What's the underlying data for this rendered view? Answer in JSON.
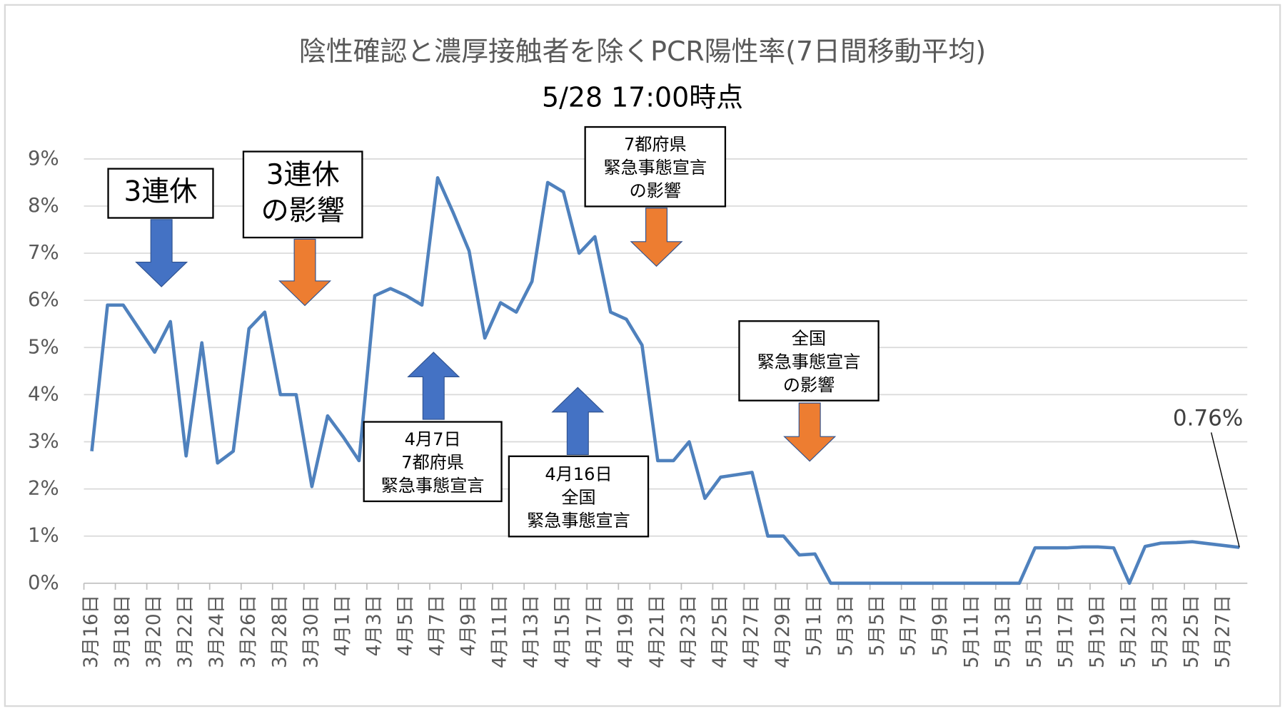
{
  "chart_data": {
    "type": "line",
    "title": "陰性確認と濃厚接触者を除くPCR陽性率(7日間移動平均)",
    "subtitle": "5/28 17:00時点",
    "categories": [
      "3月16日",
      null,
      "3月18日",
      null,
      "3月20日",
      null,
      "3月22日",
      null,
      "3月24日",
      null,
      "3月26日",
      null,
      "3月28日",
      null,
      "3月30日",
      null,
      "4月1日",
      null,
      "4月3日",
      null,
      "4月5日",
      null,
      "4月7日",
      null,
      "4月9日",
      null,
      "4月11日",
      null,
      "4月13日",
      null,
      "4月15日",
      null,
      "4月17日",
      null,
      "4月19日",
      null,
      "4月21日",
      null,
      "4月23日",
      null,
      "4月25日",
      null,
      "4月27日",
      null,
      "4月29日",
      null,
      "5月1日",
      null,
      "5月3日",
      null,
      "5月5日",
      null,
      "5月7日",
      null,
      "5月9日",
      null,
      "5月11日",
      null,
      "5月13日",
      null,
      "5月15日",
      null,
      "5月17日",
      null,
      "5月19日",
      null,
      "5月21日",
      null,
      "5月23日",
      null,
      "5月25日",
      null,
      "5月27日",
      null
    ],
    "values": [
      2.8,
      5.9,
      5.9,
      5.4,
      4.9,
      5.55,
      2.7,
      5.1,
      2.55,
      2.8,
      5.4,
      5.75,
      4.0,
      4.0,
      2.05,
      3.55,
      3.1,
      2.6,
      6.1,
      6.25,
      6.1,
      5.9,
      8.6,
      7.85,
      7.05,
      5.2,
      5.95,
      5.75,
      6.4,
      8.5,
      8.3,
      7.0,
      7.35,
      5.75,
      5.6,
      5.05,
      2.6,
      2.6,
      3.0,
      1.8,
      2.25,
      2.3,
      2.35,
      1.0,
      1.0,
      0.6,
      0.62,
      0,
      0,
      0,
      0,
      0,
      0,
      0,
      0,
      0,
      0,
      0,
      0,
      0,
      0.75,
      0.75,
      0.75,
      0.77,
      0.77,
      0.75,
      0,
      0.78,
      0.85,
      0.86,
      0.88,
      0.84,
      0.8,
      0.76
    ],
    "color": "#4f81bd",
    "ylim": [
      0,
      9
    ],
    "yticks": [
      {
        "value": 0,
        "label": "0%"
      },
      {
        "value": 1,
        "label": "1%"
      },
      {
        "value": 2,
        "label": "2%"
      },
      {
        "value": 3,
        "label": "3%"
      },
      {
        "value": 4,
        "label": "4%"
      },
      {
        "value": 5,
        "label": "5%"
      },
      {
        "value": 6,
        "label": "6%"
      },
      {
        "value": 7,
        "label": "7%"
      },
      {
        "value": 8,
        "label": "8%"
      },
      {
        "value": 9,
        "label": "9%"
      }
    ],
    "grid": true,
    "annotations": [
      {
        "lines": [
          "3連休"
        ]
      },
      {
        "lines": [
          "3連休",
          "の影響"
        ]
      },
      {
        "lines": [
          "7都府県",
          "緊急事態宣言",
          "の影響"
        ]
      },
      {
        "lines": [
          "4月7日",
          "7都府県",
          "緊急事態宣言"
        ]
      },
      {
        "lines": [
          "4月16日",
          "全国",
          "緊急事態宣言"
        ]
      },
      {
        "lines": [
          "全国",
          "緊急事態宣言",
          "の影響"
        ]
      },
      {
        "lines": [
          "0.76%"
        ]
      }
    ]
  }
}
